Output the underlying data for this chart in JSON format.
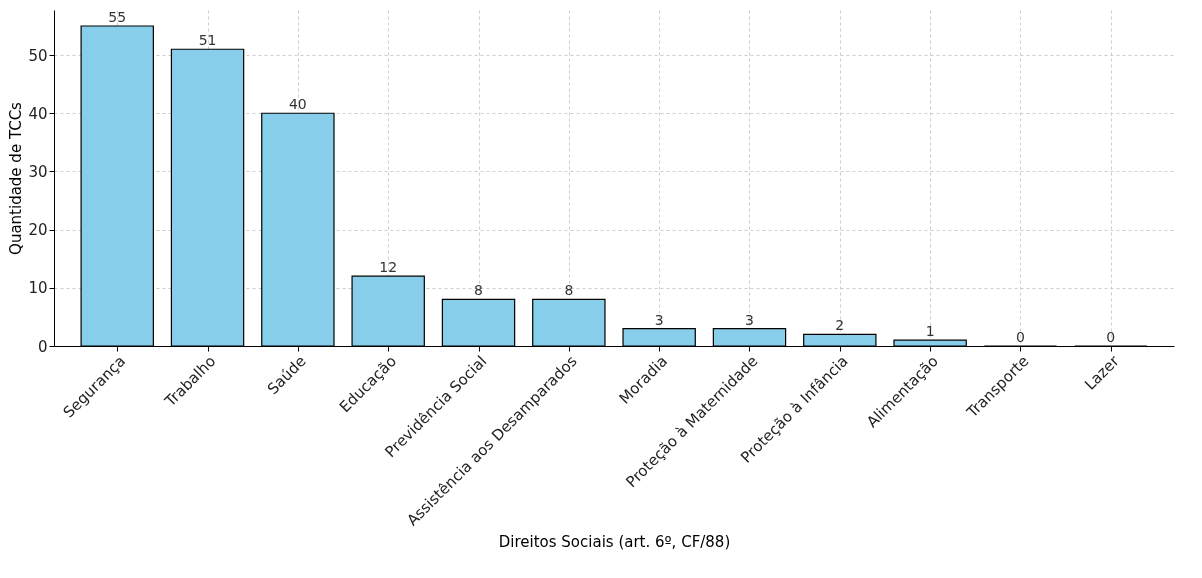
{
  "chart_data": {
    "type": "bar",
    "xlabel": "Direitos Sociais (art. 6º, CF/88)",
    "ylabel": "Quantidade de TCCs",
    "categories": [
      "Segurança",
      "Trabalho",
      "Saúde",
      "Educação",
      "Previdência Social",
      "Assistência aos Desamparados",
      "Moradia",
      "Proteção à Maternidade",
      "Proteção à Infância",
      "Alimentação",
      "Transporte",
      "Lazer"
    ],
    "values": [
      55,
      51,
      40,
      12,
      8,
      8,
      3,
      3,
      2,
      1,
      0,
      0
    ],
    "color": "#87ceeb",
    "ylim": [
      0,
      57.75
    ],
    "yticks": [
      0,
      10,
      20,
      30,
      40,
      50
    ],
    "grid": true,
    "data_labels": true
  }
}
